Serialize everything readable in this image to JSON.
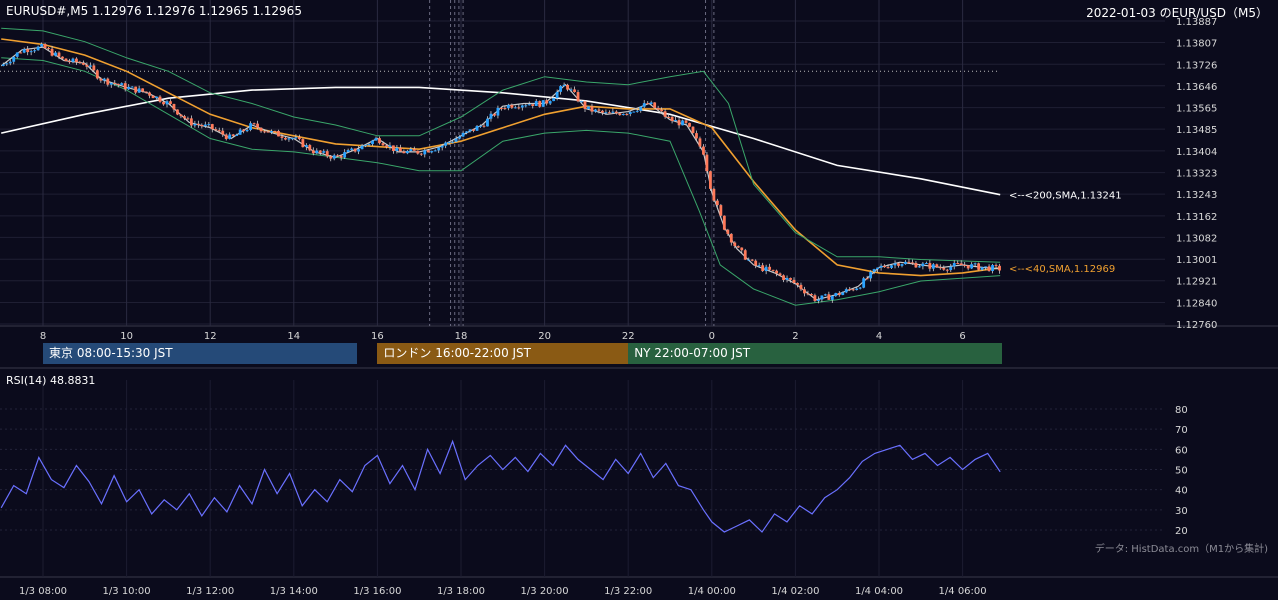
{
  "header": {
    "ohlc_line": "EURUSD#,M5 1.12976 1.12976 1.12965 1.12965",
    "title_line": "2022-01-03 のEUR/USD（M5）"
  },
  "sessions": [
    {
      "label": "東京 08:00-15:30 JST",
      "color": "#254a78"
    },
    {
      "label": "ロンドン 16:00-22:00 JST",
      "color": "#8a5a14"
    },
    {
      "label": "NY 22:00-07:00 JST",
      "color": "#28613f"
    }
  ],
  "rsi_label": "RSI(14) 48.8831",
  "credit": "データ: HistData.com（M1から集計)",
  "chart_data": [
    {
      "type": "candlestick",
      "title": "EURUSD#,M5",
      "y_ticks": [
        "1.13887",
        "1.13807",
        "1.13726",
        "1.13646",
        "1.13565",
        "1.13485",
        "1.13404",
        "1.13323",
        "1.13243",
        "1.13162",
        "1.13082",
        "1.13001",
        "1.12921",
        "1.12840",
        "1.12760"
      ],
      "ylim": [
        1.1276,
        1.13887
      ],
      "x_ticks": [
        "8",
        "10",
        "12",
        "14",
        "16",
        "18",
        "20",
        "22",
        "0",
        "2",
        "4",
        "6"
      ],
      "x_tick_hours": [
        8,
        10,
        12,
        14,
        16,
        18,
        20,
        22,
        24,
        26,
        28,
        30
      ],
      "x_range_hours": [
        7,
        31
      ],
      "reference_level": 1.137,
      "annotations": [
        {
          "label": "<--<200,SMA,1.13241",
          "value": 1.13241,
          "color": "#ffffff"
        },
        {
          "label": "<--<40,SMA,1.12969",
          "value": 1.12969,
          "color": "#f0a030"
        }
      ],
      "series": [
        {
          "name": "200,SMA",
          "color": "#ffffff",
          "points": [
            [
              7,
              1.1347
            ],
            [
              9,
              1.1354
            ],
            [
              11,
              1.136
            ],
            [
              13,
              1.1363
            ],
            [
              15,
              1.1364
            ],
            [
              17,
              1.1364
            ],
            [
              19,
              1.1362
            ],
            [
              21,
              1.1359
            ],
            [
              23,
              1.1354
            ],
            [
              25,
              1.1345
            ],
            [
              27,
              1.1335
            ],
            [
              29,
              1.133
            ],
            [
              30.9,
              1.13241
            ]
          ]
        },
        {
          "name": "40,SMA",
          "color": "#f0a030",
          "points": [
            [
              7,
              1.1382
            ],
            [
              8,
              1.138
            ],
            [
              9,
              1.1376
            ],
            [
              10,
              1.137
            ],
            [
              11,
              1.1362
            ],
            [
              12,
              1.1354
            ],
            [
              13,
              1.1349
            ],
            [
              14,
              1.1346
            ],
            [
              15,
              1.1343
            ],
            [
              16,
              1.1342
            ],
            [
              17,
              1.1341
            ],
            [
              18,
              1.1344
            ],
            [
              19,
              1.1349
            ],
            [
              20,
              1.1354
            ],
            [
              21,
              1.1357
            ],
            [
              22,
              1.1356
            ],
            [
              23,
              1.1356
            ],
            [
              24,
              1.1349
            ],
            [
              25,
              1.1329
            ],
            [
              26,
              1.1311
            ],
            [
              27,
              1.1298
            ],
            [
              28,
              1.1295
            ],
            [
              29,
              1.1294
            ],
            [
              30,
              1.1295
            ],
            [
              30.9,
              1.12969
            ]
          ]
        },
        {
          "name": "BB upper",
          "color": "#3aa66a",
          "points": [
            [
              7,
              1.1386
            ],
            [
              8,
              1.1385
            ],
            [
              9,
              1.1381
            ],
            [
              10,
              1.1375
            ],
            [
              11,
              1.137
            ],
            [
              12,
              1.1362
            ],
            [
              13,
              1.1358
            ],
            [
              14,
              1.1353
            ],
            [
              15,
              1.135
            ],
            [
              16,
              1.1346
            ],
            [
              17,
              1.1346
            ],
            [
              18,
              1.1353
            ],
            [
              19,
              1.1363
            ],
            [
              20,
              1.1368
            ],
            [
              21,
              1.1366
            ],
            [
              22,
              1.1365
            ],
            [
              23,
              1.1368
            ],
            [
              23.8,
              1.137
            ],
            [
              24.4,
              1.1358
            ],
            [
              25,
              1.1328
            ],
            [
              26,
              1.131
            ],
            [
              27,
              1.1301
            ],
            [
              28,
              1.1301
            ],
            [
              29,
              1.13
            ],
            [
              30.9,
              1.1299
            ]
          ]
        },
        {
          "name": "BB lower",
          "color": "#3aa66a",
          "points": [
            [
              7,
              1.1375
            ],
            [
              8,
              1.1374
            ],
            [
              9,
              1.137
            ],
            [
              10,
              1.1363
            ],
            [
              11,
              1.1354
            ],
            [
              12,
              1.1345
            ],
            [
              13,
              1.1341
            ],
            [
              14,
              1.134
            ],
            [
              15,
              1.1338
            ],
            [
              16,
              1.1336
            ],
            [
              17,
              1.1333
            ],
            [
              18,
              1.1333
            ],
            [
              19,
              1.1344
            ],
            [
              20,
              1.1347
            ],
            [
              21,
              1.1348
            ],
            [
              22,
              1.1347
            ],
            [
              23,
              1.1344
            ],
            [
              23.7,
              1.1318
            ],
            [
              24.2,
              1.1298
            ],
            [
              25,
              1.1289
            ],
            [
              26,
              1.1283
            ],
            [
              27,
              1.1285
            ],
            [
              28,
              1.1288
            ],
            [
              29,
              1.1292
            ],
            [
              30.9,
              1.1294
            ]
          ]
        },
        {
          "name": "price",
          "color": "#c8c8c8",
          "points": [
            [
              7,
              1.1372
            ],
            [
              7.5,
              1.1378
            ],
            [
              8,
              1.1379
            ],
            [
              8.5,
              1.1374
            ],
            [
              9,
              1.1373
            ],
            [
              9.4,
              1.1367
            ],
            [
              10,
              1.1364
            ],
            [
              10.5,
              1.1362
            ],
            [
              11,
              1.1358
            ],
            [
              11.5,
              1.1351
            ],
            [
              12,
              1.1349
            ],
            [
              12.5,
              1.1345
            ],
            [
              13,
              1.135
            ],
            [
              13.5,
              1.1347
            ],
            [
              14,
              1.1345
            ],
            [
              14.5,
              1.134
            ],
            [
              15,
              1.1338
            ],
            [
              15.5,
              1.1341
            ],
            [
              16,
              1.1345
            ],
            [
              16.5,
              1.134
            ],
            [
              17,
              1.134
            ],
            [
              17.5,
              1.1342
            ],
            [
              18,
              1.1346
            ],
            [
              18.5,
              1.135
            ],
            [
              19,
              1.1357
            ],
            [
              19.5,
              1.1358
            ],
            [
              20,
              1.1358
            ],
            [
              20.5,
              1.1365
            ],
            [
              21,
              1.1356
            ],
            [
              21.5,
              1.1354
            ],
            [
              22,
              1.1355
            ],
            [
              22.5,
              1.1358
            ],
            [
              23,
              1.1352
            ],
            [
              23.4,
              1.135
            ],
            [
              23.8,
              1.134
            ],
            [
              24,
              1.1325
            ],
            [
              24.3,
              1.1312
            ],
            [
              24.6,
              1.1304
            ],
            [
              25,
              1.1298
            ],
            [
              25.5,
              1.1295
            ],
            [
              26,
              1.1291
            ],
            [
              26.5,
              1.1285
            ],
            [
              27,
              1.1287
            ],
            [
              27.5,
              1.129
            ],
            [
              28,
              1.1297
            ],
            [
              28.5,
              1.1299
            ],
            [
              29,
              1.1298
            ],
            [
              29.5,
              1.1297
            ],
            [
              30,
              1.1298
            ],
            [
              30.5,
              1.1297
            ],
            [
              30.9,
              1.12965
            ]
          ]
        }
      ]
    },
    {
      "type": "line",
      "title": "RSI(14) 48.8831",
      "y_ticks": [
        "80",
        "70",
        "60",
        "50",
        "40",
        "30",
        "20"
      ],
      "ylim": [
        15,
        85
      ],
      "x_ticks": [
        "1/3 08:00",
        "1/3 10:00",
        "1/3 12:00",
        "1/3 14:00",
        "1/3 16:00",
        "1/3 18:00",
        "1/3 20:00",
        "1/3 22:00",
        "1/4 00:00",
        "1/4 02:00",
        "1/4 04:00",
        "1/4 06:00"
      ],
      "x_tick_hours": [
        8,
        10,
        12,
        14,
        16,
        18,
        20,
        22,
        24,
        26,
        28,
        30
      ],
      "x_range_hours": [
        7,
        31
      ],
      "series": [
        {
          "name": "RSI(14)",
          "color": "#6a70ff",
          "points": [
            [
              7,
              31
            ],
            [
              7.3,
              42
            ],
            [
              7.6,
              38
            ],
            [
              7.9,
              56
            ],
            [
              8.2,
              45
            ],
            [
              8.5,
              41
            ],
            [
              8.8,
              52
            ],
            [
              9.1,
              44
            ],
            [
              9.4,
              33
            ],
            [
              9.7,
              47
            ],
            [
              10,
              34
            ],
            [
              10.3,
              40
            ],
            [
              10.6,
              28
            ],
            [
              10.9,
              35
            ],
            [
              11.2,
              30
            ],
            [
              11.5,
              38
            ],
            [
              11.8,
              27
            ],
            [
              12.1,
              36
            ],
            [
              12.4,
              29
            ],
            [
              12.7,
              42
            ],
            [
              13,
              33
            ],
            [
              13.3,
              50
            ],
            [
              13.6,
              38
            ],
            [
              13.9,
              48
            ],
            [
              14.2,
              32
            ],
            [
              14.5,
              40
            ],
            [
              14.8,
              34
            ],
            [
              15.1,
              45
            ],
            [
              15.4,
              39
            ],
            [
              15.7,
              52
            ],
            [
              16,
              57
            ],
            [
              16.3,
              43
            ],
            [
              16.6,
              52
            ],
            [
              16.9,
              40
            ],
            [
              17.2,
              60
            ],
            [
              17.5,
              48
            ],
            [
              17.8,
              64
            ],
            [
              18.1,
              45
            ],
            [
              18.4,
              52
            ],
            [
              18.7,
              57
            ],
            [
              19,
              50
            ],
            [
              19.3,
              56
            ],
            [
              19.6,
              49
            ],
            [
              19.9,
              58
            ],
            [
              20.2,
              52
            ],
            [
              20.5,
              62
            ],
            [
              20.8,
              55
            ],
            [
              21.1,
              50
            ],
            [
              21.4,
              45
            ],
            [
              21.7,
              55
            ],
            [
              22,
              48
            ],
            [
              22.3,
              58
            ],
            [
              22.6,
              46
            ],
            [
              22.9,
              53
            ],
            [
              23.2,
              42
            ],
            [
              23.5,
              40
            ],
            [
              23.8,
              30
            ],
            [
              24,
              24
            ],
            [
              24.3,
              19
            ],
            [
              24.6,
              22
            ],
            [
              24.9,
              25
            ],
            [
              25.2,
              19
            ],
            [
              25.5,
              28
            ],
            [
              25.8,
              24
            ],
            [
              26.1,
              32
            ],
            [
              26.4,
              28
            ],
            [
              26.7,
              36
            ],
            [
              27,
              40
            ],
            [
              27.3,
              46
            ],
            [
              27.6,
              54
            ],
            [
              27.9,
              58
            ],
            [
              28.2,
              60
            ],
            [
              28.5,
              62
            ],
            [
              28.8,
              55
            ],
            [
              29.1,
              58
            ],
            [
              29.4,
              52
            ],
            [
              29.7,
              56
            ],
            [
              30,
              50
            ],
            [
              30.3,
              55
            ],
            [
              30.6,
              58
            ],
            [
              30.9,
              48.8831
            ]
          ]
        }
      ]
    }
  ]
}
